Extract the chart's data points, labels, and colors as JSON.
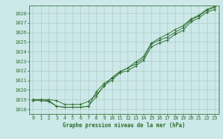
{
  "title": "Graphe pression niveau de la mer (hPa)",
  "bg_color": "#cce8e8",
  "grid_color": "#b0c8c8",
  "line_color": "#2d6e2d",
  "spine_color": "#2d6e2d",
  "xlim": [
    -0.5,
    23.5
  ],
  "ylim": [
    1017.5,
    1028.8
  ],
  "xticks": [
    0,
    1,
    2,
    3,
    4,
    5,
    6,
    7,
    8,
    9,
    10,
    11,
    12,
    13,
    14,
    15,
    16,
    17,
    18,
    19,
    20,
    21,
    22,
    23
  ],
  "yticks": [
    1018,
    1019,
    1020,
    1021,
    1022,
    1023,
    1024,
    1025,
    1026,
    1027,
    1028
  ],
  "series1": [
    1019.0,
    1019.0,
    1018.9,
    1018.3,
    1018.2,
    1018.2,
    1018.2,
    1018.3,
    1019.3,
    1020.5,
    1021.0,
    1021.8,
    1022.0,
    1022.5,
    1023.1,
    1024.5,
    1024.9,
    1025.2,
    1025.8,
    1026.2,
    1027.1,
    1027.5,
    1028.1,
    1028.4
  ],
  "series2": [
    1019.0,
    1019.0,
    1019.0,
    1018.9,
    1018.5,
    1018.5,
    1018.5,
    1018.8,
    1019.5,
    1020.4,
    1021.3,
    1021.9,
    1022.3,
    1022.7,
    1023.3,
    1024.8,
    1025.2,
    1025.5,
    1026.0,
    1026.5,
    1027.3,
    1027.7,
    1028.3,
    1028.6
  ],
  "series3": [
    1018.9,
    1018.9,
    1018.8,
    1018.3,
    1018.2,
    1018.2,
    1018.2,
    1018.3,
    1019.8,
    1020.7,
    1021.2,
    1021.9,
    1022.3,
    1022.9,
    1023.5,
    1024.9,
    1025.4,
    1025.8,
    1026.3,
    1026.7,
    1027.4,
    1027.8,
    1028.4,
    1028.7
  ],
  "ylabel_fontsize": 5.0,
  "xlabel_fontsize": 5.2,
  "title_fontsize": 5.5
}
